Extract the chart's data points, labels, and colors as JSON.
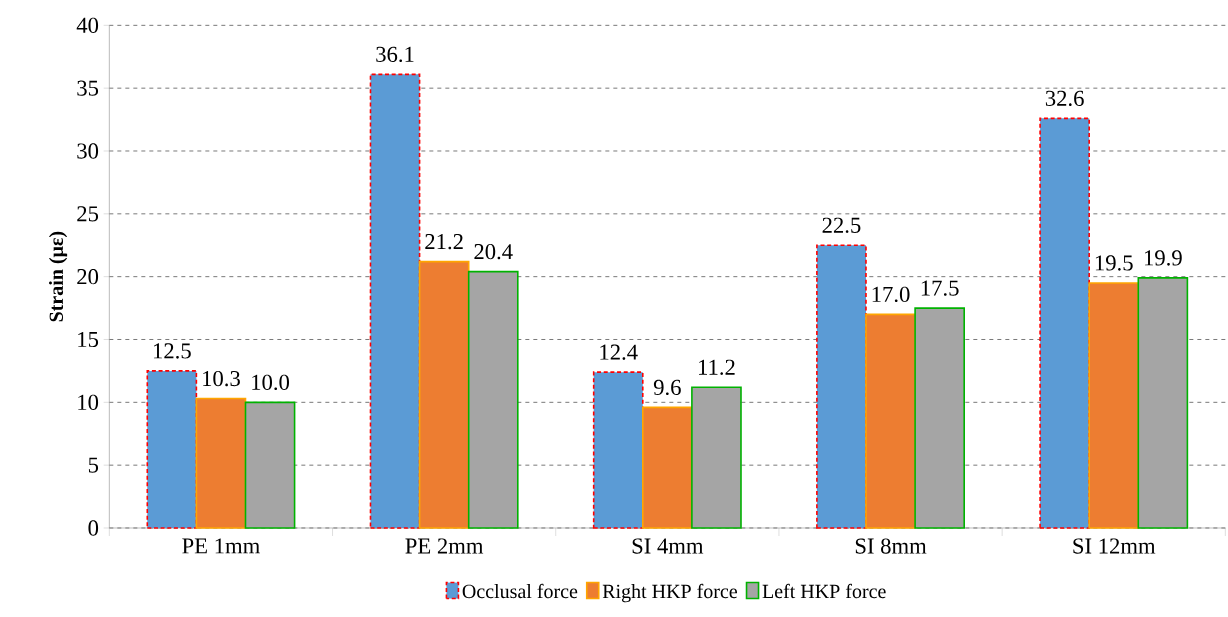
{
  "chart_data": {
    "type": "bar",
    "ylabel": "Strain (με)",
    "categories": [
      "PE 1mm",
      "PE 2mm",
      "SI 4mm",
      "SI 8mm",
      "SI 12mm"
    ],
    "series": [
      {
        "name": "Occlusal force",
        "color": "#5b9bd5",
        "values": [
          12.5,
          36.1,
          12.4,
          22.5,
          32.6
        ],
        "value_labels": [
          "12.5",
          "36.1",
          "12.4",
          "22.5",
          "32.6"
        ]
      },
      {
        "name": "Right HKP force",
        "color": "#ed7d31",
        "values": [
          10.3,
          21.2,
          9.6,
          17.0,
          19.5
        ],
        "value_labels": [
          "10.3",
          "21.2",
          "9.6",
          "17.0",
          "19.5"
        ]
      },
      {
        "name": "Left HKP force",
        "color": "#a5a5a5",
        "values": [
          10.0,
          20.4,
          11.2,
          17.5,
          19.9
        ],
        "value_labels": [
          "10.0",
          "20.4",
          "11.2",
          "17.5",
          "19.9"
        ]
      }
    ],
    "ylim": [
      0,
      40
    ],
    "yticks": [
      0,
      5,
      10,
      15,
      20,
      25,
      30,
      35,
      40
    ],
    "grid": "y",
    "legend": "bottom"
  }
}
